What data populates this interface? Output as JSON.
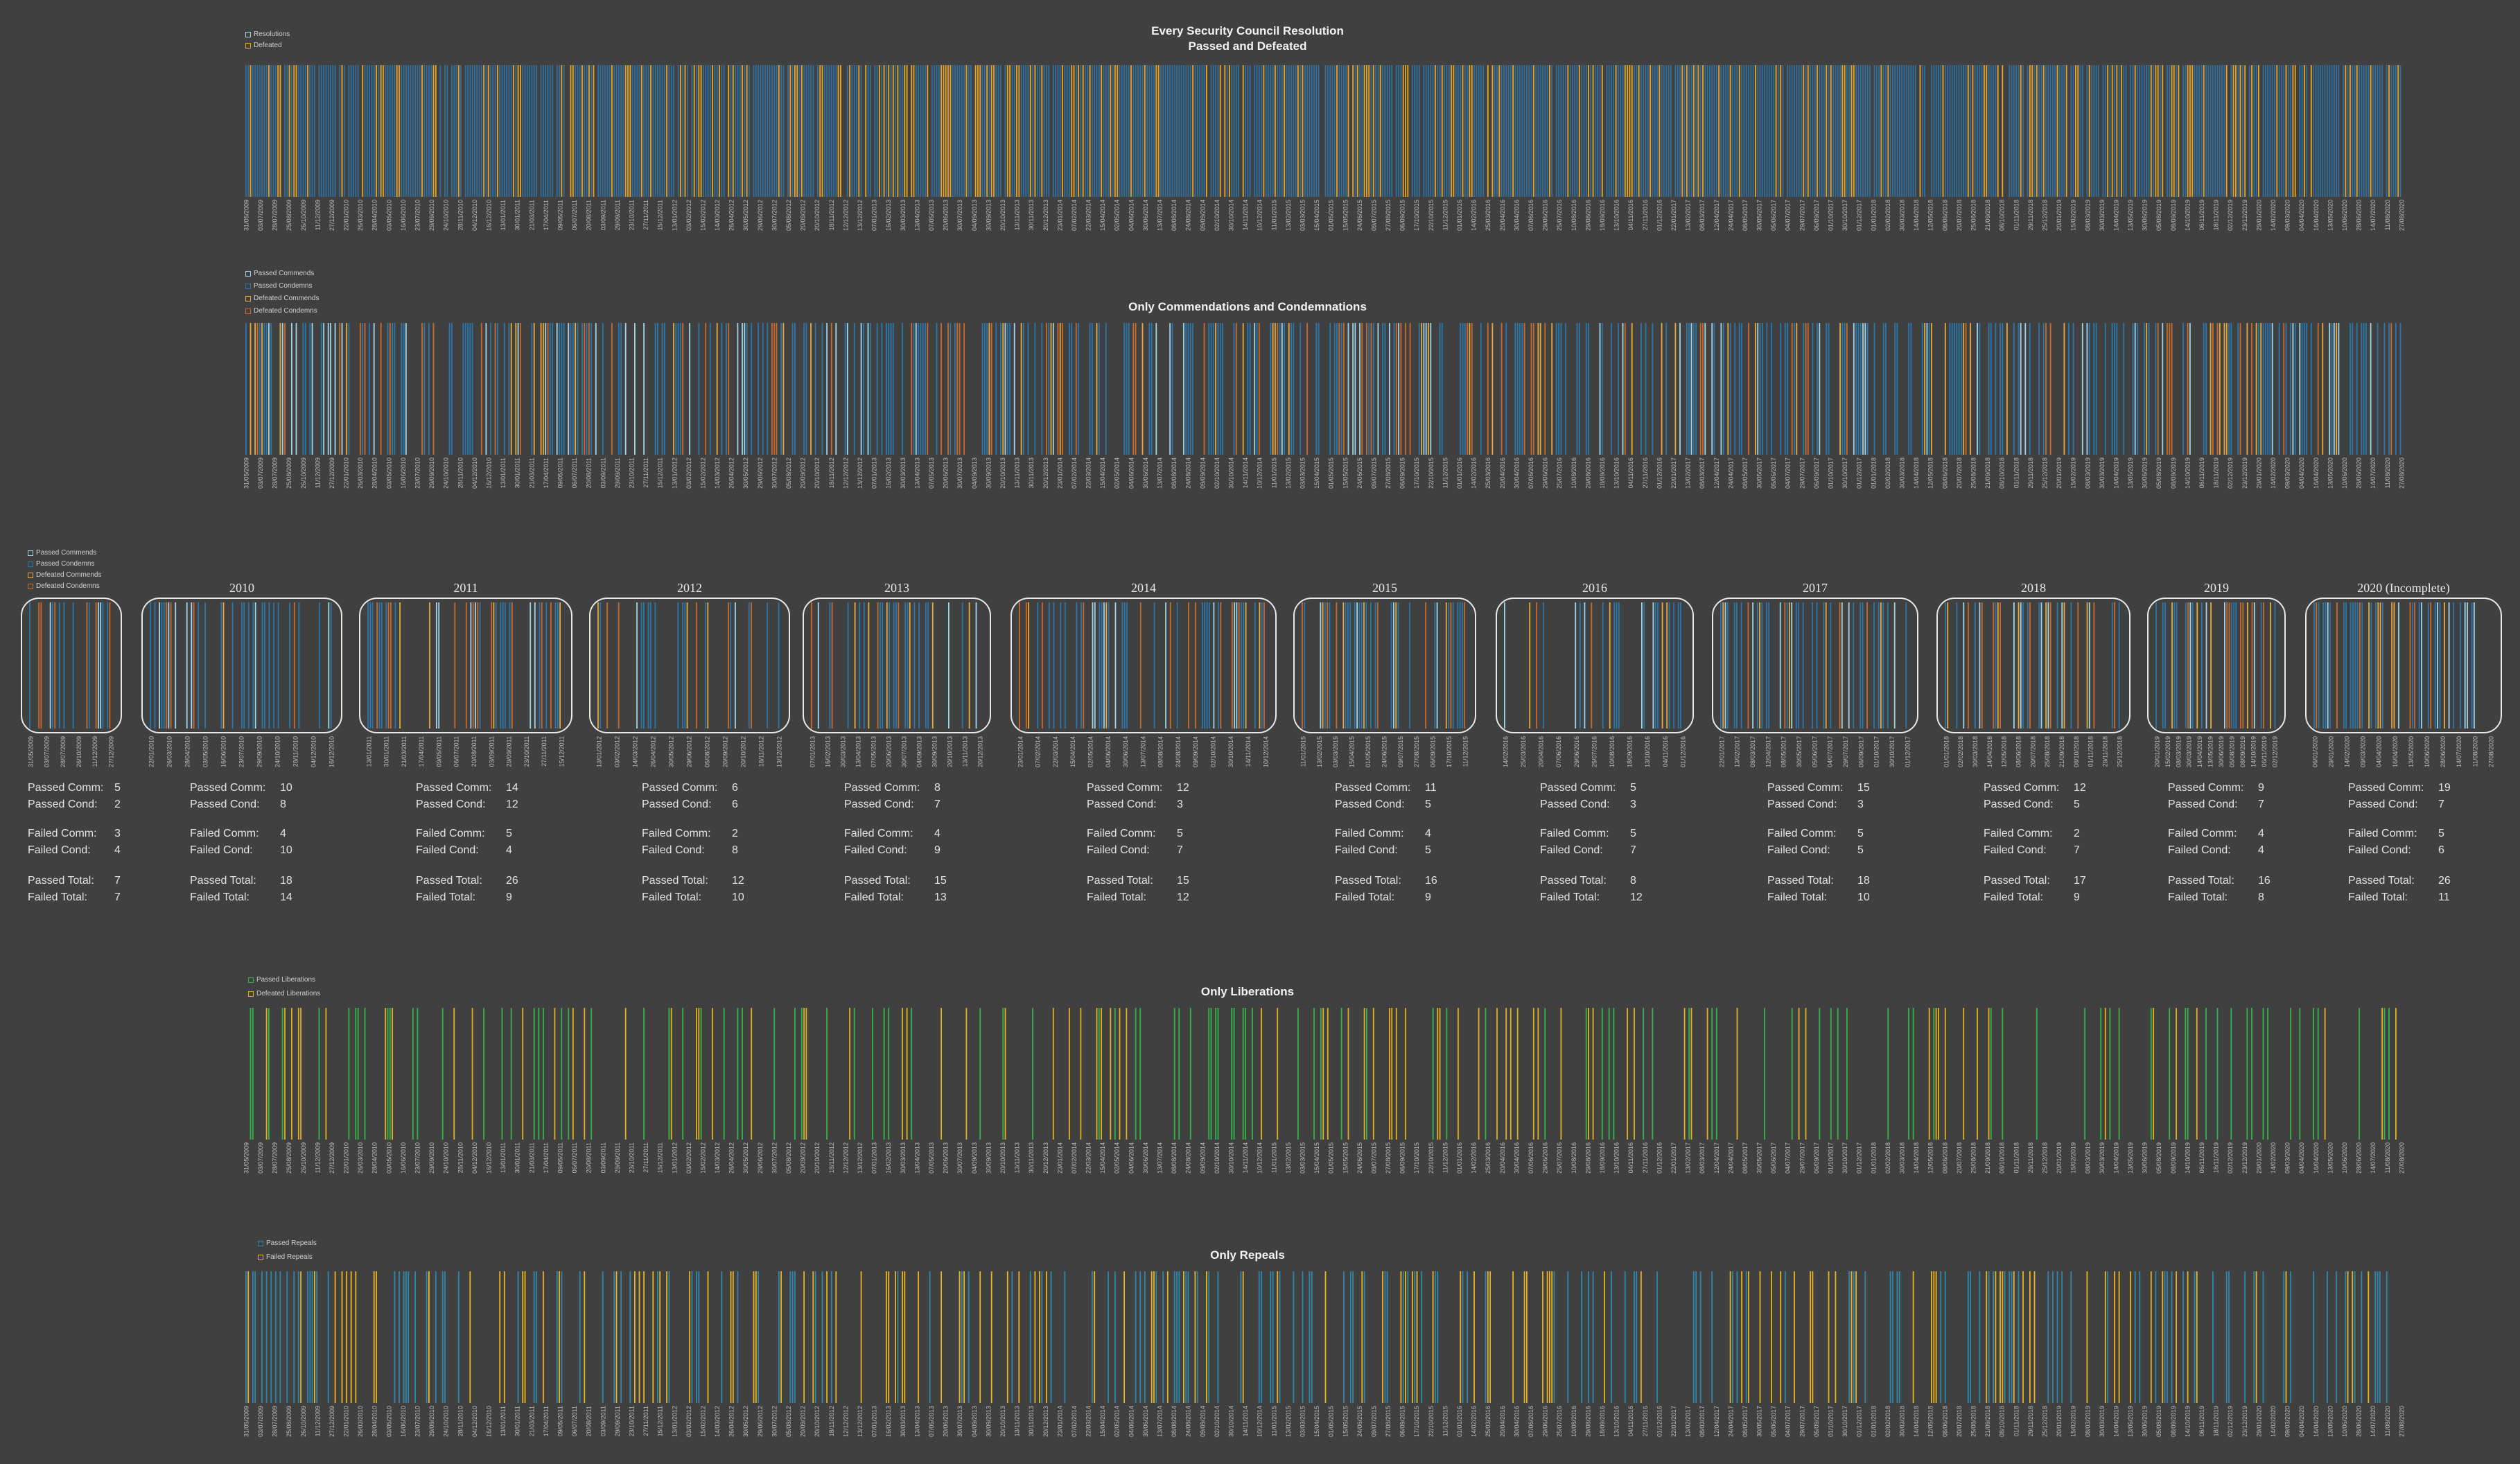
{
  "colors": {
    "background": "#404040",
    "resolution": "#2f6f9f",
    "defeated": "#e8a524",
    "passed_commend": "#9fd4e8",
    "passed_condemn": "#2a78ab",
    "defeated_commend": "#e6a93a",
    "defeated_condemn": "#c96a2b",
    "passed_liberation": "#33b34a",
    "defeated_liberation": "#e0b020",
    "passed_repeal": "#2f86ab",
    "failed_repeal": "#e8b321"
  },
  "chart_data": [
    {
      "id": "all",
      "type": "bar",
      "title": "Every Security Council Resolution",
      "subtitle": "Passed and Defeated",
      "legend": [
        "Resolutions",
        "Defeated"
      ],
      "legend_placement": "top-left",
      "x_range": [
        "31/05/2009",
        "27/08/2020"
      ],
      "density": 0.95,
      "mix": [
        0.72,
        0.28
      ],
      "seed": 11
    },
    {
      "id": "cc",
      "type": "bar",
      "title": "Only Commendations and Condemnations",
      "legend": [
        "Passed Commends",
        "Passed Condemns",
        "Defeated Commends",
        "Defeated Condemns"
      ],
      "legend_placement": "top-left",
      "x_range": [
        "31/05/2009",
        "27/08/2020"
      ],
      "density": 0.52,
      "mix": [
        0.15,
        0.55,
        0.12,
        0.18
      ],
      "seed": 23
    },
    {
      "id": "lib",
      "type": "bar",
      "title": "Only Liberations",
      "legend": [
        "Passed Liberations",
        "Defeated Liberations"
      ],
      "legend_placement": "top-left",
      "x_range": [
        "31/05/2009",
        "27/08/2020"
      ],
      "density": 0.2,
      "mix": [
        0.6,
        0.4
      ],
      "seed": 37
    },
    {
      "id": "rep",
      "type": "bar",
      "title": "Only Repeals",
      "legend": [
        "Passed Repeals",
        "Failed Repeals"
      ],
      "legend_placement": "top-left",
      "x_range": [
        "31/05/2009",
        "27/08/2020"
      ],
      "density": 0.3,
      "mix": [
        0.55,
        0.45
      ],
      "seed": 53
    }
  ],
  "x_tick_labels": [
    "31/05/2009",
    "03/07/2009",
    "28/07/2009",
    "25/08/2009",
    "26/10/2009",
    "11/12/2009",
    "27/12/2009",
    "22/01/2010",
    "26/03/2010",
    "28/04/2010",
    "03/05/2010",
    "16/06/2010",
    "23/07/2010",
    "29/09/2010",
    "24/10/2010",
    "28/11/2010",
    "04/12/2010",
    "16/12/2010",
    "13/01/2011",
    "30/01/2011",
    "21/03/2011",
    "17/04/2011",
    "09/05/2011",
    "06/07/2011",
    "20/08/2011",
    "03/09/2011",
    "29/09/2011",
    "23/10/2011",
    "27/11/2011",
    "15/12/2011",
    "13/01/2012",
    "03/02/2012",
    "15/02/2012",
    "14/03/2012",
    "26/04/2012",
    "30/05/2012",
    "29/06/2012",
    "30/07/2012",
    "05/08/2012",
    "20/09/2012",
    "20/10/2012",
    "18/11/2012",
    "12/12/2012",
    "13/12/2012",
    "07/01/2013",
    "16/02/2013",
    "30/03/2013",
    "13/04/2013",
    "07/05/2013",
    "20/06/2013",
    "30/07/2013",
    "04/09/2013",
    "30/09/2013",
    "20/10/2013",
    "13/11/2013",
    "30/11/2013",
    "20/12/2013",
    "23/01/2014",
    "07/02/2014",
    "22/03/2014",
    "15/04/2014",
    "02/05/2014",
    "04/06/2014",
    "30/06/2014",
    "13/07/2014",
    "08/08/2014",
    "24/08/2014",
    "09/09/2014",
    "02/10/2014",
    "30/10/2014",
    "14/11/2014",
    "10/12/2014",
    "11/01/2015",
    "13/02/2015",
    "03/03/2015",
    "15/04/2015",
    "01/05/2015",
    "15/05/2015",
    "24/06/2015",
    "09/07/2015",
    "27/08/2015",
    "06/09/2015",
    "17/10/2015",
    "22/10/2015",
    "11/12/2015",
    "01/01/2016",
    "14/02/2016",
    "25/03/2016",
    "20/04/2016",
    "30/04/2016",
    "07/06/2016",
    "29/06/2016",
    "25/07/2016",
    "10/08/2016",
    "29/08/2016",
    "18/09/2016",
    "13/10/2016",
    "04/11/2016",
    "27/11/2016",
    "01/12/2016",
    "22/01/2017",
    "13/02/2017",
    "08/03/2017",
    "12/04/2017",
    "24/04/2017",
    "08/05/2017",
    "30/05/2017",
    "05/06/2017",
    "04/07/2017",
    "29/07/2017",
    "06/09/2017",
    "01/10/2017",
    "30/10/2017",
    "01/12/2017",
    "01/01/2018",
    "02/02/2018",
    "30/03/2018",
    "14/04/2018",
    "12/05/2018",
    "08/06/2018",
    "20/07/2018",
    "25/08/2018",
    "21/09/2018",
    "08/10/2018",
    "01/11/2018",
    "29/11/2018",
    "25/12/2018",
    "20/01/2019",
    "15/02/2019",
    "08/03/2019",
    "30/03/2019",
    "14/04/2019",
    "13/05/2019",
    "30/06/2019",
    "05/08/2019",
    "08/09/2019",
    "14/10/2019",
    "06/11/2019",
    "18/11/2019",
    "02/12/2019",
    "23/12/2019",
    "29/01/2020",
    "14/02/2020",
    "09/03/2020",
    "04/04/2020",
    "16/04/2020",
    "13/05/2020",
    "10/06/2020",
    "28/06/2020",
    "14/07/2020",
    "11/08/2020",
    "27/08/2020"
  ],
  "commend_legend": [
    "Passed Commends",
    "Passed Condemns",
    "Defeated Commends",
    "Defeated Condemns"
  ],
  "years": [
    {
      "year": "",
      "passed_comm": "5",
      "passed_cond": "2",
      "failed_comm": "3",
      "failed_cond": "4",
      "passed_total": "7",
      "failed_total": "7",
      "density": 0.35,
      "seed": 101,
      "ticks": [
        "31/05/2009",
        "03/07/2009",
        "28/07/2009",
        "26/10/2009",
        "11/12/2009",
        "27/12/2009"
      ]
    },
    {
      "year": "2010",
      "passed_comm": "10",
      "passed_cond": "8",
      "failed_comm": "4",
      "failed_cond": "10",
      "passed_total": "18",
      "failed_total": "14",
      "density": 0.45,
      "seed": 102,
      "ticks": [
        "22/01/2010",
        "26/03/2010",
        "28/04/2010",
        "03/05/2010",
        "16/06/2010",
        "23/07/2010",
        "29/09/2010",
        "24/10/2010",
        "28/11/2010",
        "04/12/2010",
        "16/12/2010"
      ]
    },
    {
      "year": "2011",
      "passed_comm": "14",
      "passed_cond": "12",
      "failed_comm": "5",
      "failed_cond": "4",
      "passed_total": "26",
      "failed_total": "9",
      "density": 0.55,
      "seed": 103,
      "ticks": [
        "13/01/2011",
        "30/01/2011",
        "21/03/2011",
        "17/04/2011",
        "09/05/2011",
        "06/07/2011",
        "20/08/2011",
        "03/09/2011",
        "29/09/2011",
        "23/10/2011",
        "27/11/2011",
        "15/12/2011"
      ]
    },
    {
      "year": "2012",
      "passed_comm": "6",
      "passed_cond": "6",
      "failed_comm": "2",
      "failed_cond": "8",
      "passed_total": "12",
      "failed_total": "10",
      "density": 0.35,
      "seed": 104,
      "ticks": [
        "13/01/2012",
        "03/02/2012",
        "14/03/2012",
        "26/04/2012",
        "30/05/2012",
        "29/06/2012",
        "05/08/2012",
        "20/09/2012",
        "20/10/2012",
        "18/11/2012",
        "13/12/2012"
      ]
    },
    {
      "year": "2013",
      "passed_comm": "8",
      "passed_cond": "7",
      "failed_comm": "4",
      "failed_cond": "9",
      "passed_total": "15",
      "failed_total": "13",
      "density": 0.45,
      "seed": 105,
      "ticks": [
        "07/01/2013",
        "16/02/2013",
        "30/03/2013",
        "13/04/2013",
        "07/05/2013",
        "20/06/2013",
        "30/07/2013",
        "04/09/2013",
        "30/09/2013",
        "20/10/2013",
        "13/11/2013",
        "20/12/2013"
      ]
    },
    {
      "year": "2014",
      "passed_comm": "12",
      "passed_cond": "3",
      "failed_comm": "5",
      "failed_cond": "7",
      "passed_total": "15",
      "failed_total": "12",
      "density": 0.35,
      "seed": 106,
      "ticks": [
        "23/01/2014",
        "07/02/2014",
        "22/03/2014",
        "15/04/2014",
        "02/05/2014",
        "04/06/2014",
        "30/06/2014",
        "13/07/2014",
        "08/08/2014",
        "24/08/2014",
        "09/09/2014",
        "02/10/2014",
        "30/10/2014",
        "14/11/2014",
        "10/12/2014"
      ]
    },
    {
      "year": "2015",
      "passed_comm": "11",
      "passed_cond": "5",
      "failed_comm": "4",
      "failed_cond": "5",
      "passed_total": "16",
      "failed_total": "9",
      "density": 0.45,
      "seed": 107,
      "ticks": [
        "11/01/2015",
        "13/02/2015",
        "03/03/2015",
        "15/04/2015",
        "01/05/2015",
        "24/06/2015",
        "09/07/2015",
        "27/08/2015",
        "06/09/2015",
        "17/10/2015",
        "11/12/2015"
      ]
    },
    {
      "year": "2016",
      "passed_comm": "5",
      "passed_cond": "3",
      "failed_comm": "5",
      "failed_cond": "7",
      "passed_total": "8",
      "failed_total": "12",
      "density": 0.3,
      "seed": 108,
      "ticks": [
        "14/02/2016",
        "25/03/2016",
        "20/04/2016",
        "07/06/2016",
        "29/06/2016",
        "25/07/2016",
        "10/08/2016",
        "18/09/2016",
        "13/10/2016",
        "04/11/2016",
        "01/12/2016"
      ]
    },
    {
      "year": "2017",
      "passed_comm": "15",
      "passed_cond": "3",
      "failed_comm": "5",
      "failed_cond": "5",
      "passed_total": "18",
      "failed_total": "10",
      "density": 0.5,
      "seed": 109,
      "ticks": [
        "22/01/2017",
        "13/02/2017",
        "08/03/2017",
        "12/04/2017",
        "08/05/2017",
        "30/05/2017",
        "05/06/2017",
        "04/07/2017",
        "29/07/2017",
        "06/09/2017",
        "01/10/2017",
        "30/10/2017",
        "01/12/2017"
      ]
    },
    {
      "year": "2018",
      "passed_comm": "12",
      "passed_cond": "5",
      "failed_comm": "2",
      "failed_cond": "7",
      "passed_total": "17",
      "failed_total": "9",
      "density": 0.5,
      "seed": 110,
      "ticks": [
        "01/01/2018",
        "02/02/2018",
        "30/03/2018",
        "14/04/2018",
        "12/05/2018",
        "08/06/2018",
        "20/07/2018",
        "25/08/2018",
        "21/09/2018",
        "08/10/2018",
        "01/11/2018",
        "29/11/2018",
        "25/12/2018"
      ]
    },
    {
      "year": "2019",
      "passed_comm": "9",
      "passed_cond": "7",
      "failed_comm": "4",
      "failed_cond": "4",
      "passed_total": "16",
      "failed_total": "8",
      "density": 0.5,
      "seed": 111,
      "ticks": [
        "20/01/2019",
        "15/02/2019",
        "08/03/2019",
        "30/03/2019",
        "14/04/2019",
        "13/05/2019",
        "30/06/2019",
        "05/08/2019",
        "08/09/2019",
        "14/10/2019",
        "06/11/2019",
        "02/12/2019"
      ]
    },
    {
      "year": "2020 (Incomplete)",
      "passed_comm": "19",
      "passed_cond": "7",
      "failed_comm": "5",
      "failed_cond": "6",
      "passed_total": "26",
      "failed_total": "11",
      "density": 0.6,
      "seed": 112,
      "ticks": [
        "06/01/2020",
        "29/01/2020",
        "14/02/2020",
        "09/03/2020",
        "04/04/2020",
        "16/04/2020",
        "13/05/2020",
        "10/06/2020",
        "28/06/2020",
        "14/07/2020",
        "11/08/2020",
        "27/08/2020"
      ]
    }
  ],
  "labels": {
    "passed_comm": "Passed Comm:",
    "passed_cond": "Passed Cond:",
    "failed_comm": "Failed Comm:",
    "failed_cond": "Failed Cond:",
    "passed_total": "Passed Total:",
    "failed_total": "Failed Total:"
  }
}
